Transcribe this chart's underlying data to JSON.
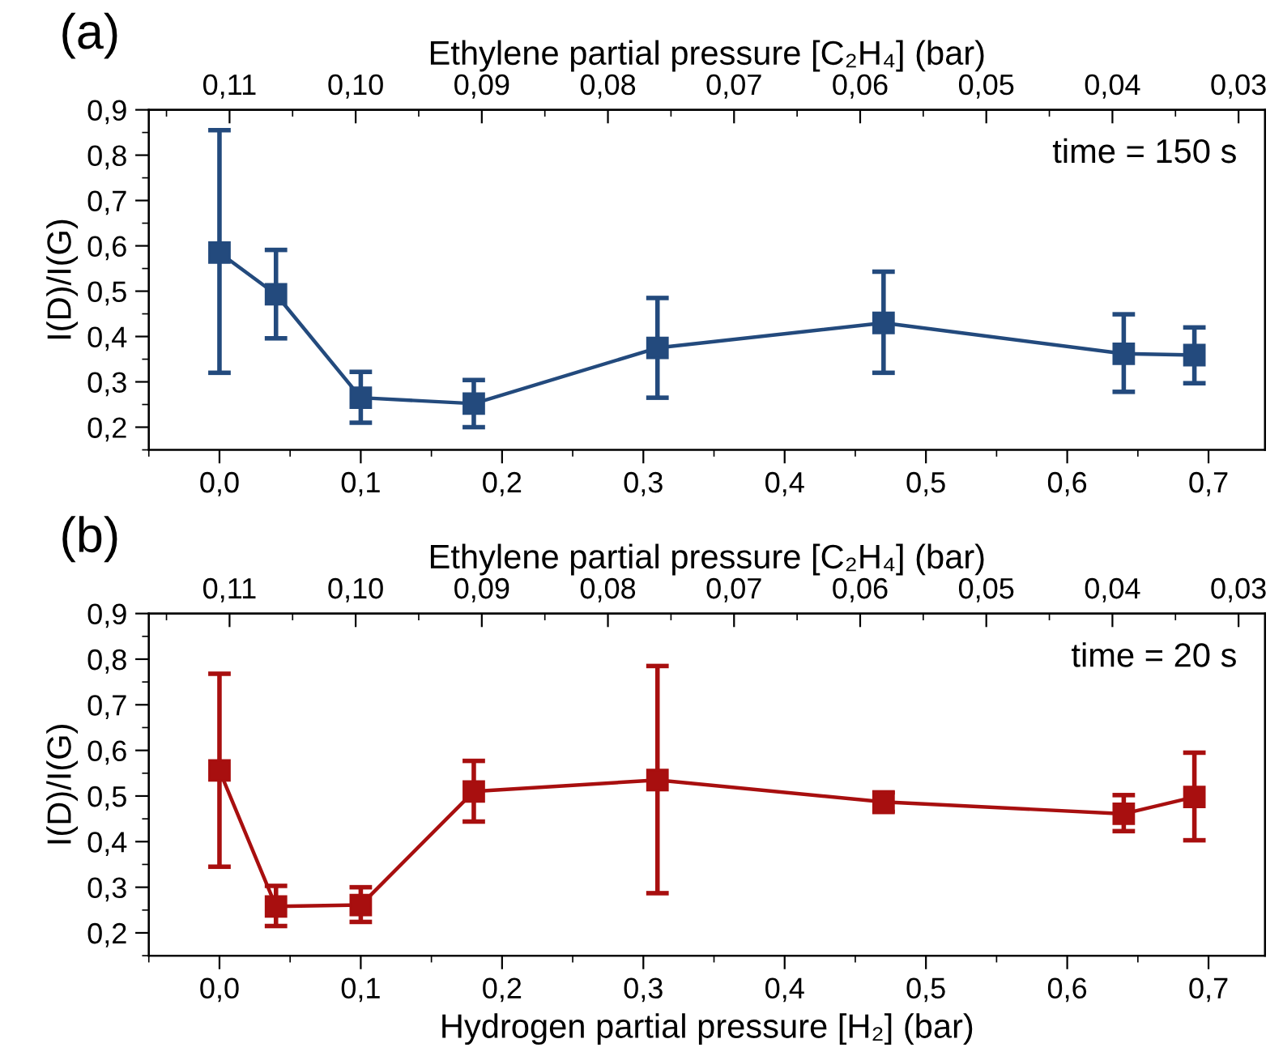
{
  "chart_data": [
    {
      "type": "line",
      "ylabel": "I(D)/I(G)",
      "x2label": "Ethylene partial pressure [C₂H₄] (bar)",
      "annotations": [
        "(a)",
        "time = 150 s"
      ],
      "series": [
        {
          "color": "#234a7d",
          "x": [
            0.0,
            0.04,
            0.1,
            0.18,
            0.31,
            0.47,
            0.64,
            0.69
          ],
          "values": [
            0.585,
            0.493,
            0.265,
            0.252,
            0.375,
            0.43,
            0.362,
            0.359
          ],
          "errors": [
            [
              0.32,
              0.855
            ],
            [
              0.396,
              0.591
            ],
            [
              0.21,
              0.322
            ],
            [
              0.2,
              0.304
            ],
            [
              0.265,
              0.485
            ],
            [
              0.32,
              0.543
            ],
            [
              0.278,
              0.449
            ],
            [
              0.297,
              0.42
            ]
          ]
        }
      ],
      "marker": "square",
      "line_style": "solid",
      "grid": false,
      "legend": false,
      "xlim": [
        -0.05,
        0.74
      ],
      "xticks": [
        {
          "value": 0.0,
          "label": "0,0"
        },
        {
          "value": 0.1,
          "label": "0,1"
        },
        {
          "value": 0.2,
          "label": "0,2"
        },
        {
          "value": 0.3,
          "label": "0,3"
        },
        {
          "value": 0.4,
          "label": "0,4"
        },
        {
          "value": 0.5,
          "label": "0,5"
        },
        {
          "value": 0.6,
          "label": "0,6"
        },
        {
          "value": 0.7,
          "label": "0,7"
        }
      ],
      "x2lim": [
        0.1164,
        0.0279
      ],
      "x2ticks": [
        {
          "value": 0.11,
          "label": "0,11"
        },
        {
          "value": 0.1,
          "label": "0,10"
        },
        {
          "value": 0.09,
          "label": "0,09"
        },
        {
          "value": 0.08,
          "label": "0,08"
        },
        {
          "value": 0.07,
          "label": "0,07"
        },
        {
          "value": 0.06,
          "label": "0,06"
        },
        {
          "value": 0.05,
          "label": "0,05"
        },
        {
          "value": 0.04,
          "label": "0,04"
        },
        {
          "value": 0.03,
          "label": "0,03"
        }
      ],
      "ylim": [
        0.15,
        0.9
      ],
      "yticks": [
        {
          "value": 0.2,
          "label": "0,2"
        },
        {
          "value": 0.3,
          "label": "0,3"
        },
        {
          "value": 0.4,
          "label": "0,4"
        },
        {
          "value": 0.5,
          "label": "0,5"
        },
        {
          "value": 0.6,
          "label": "0,6"
        },
        {
          "value": 0.7,
          "label": "0,7"
        },
        {
          "value": 0.8,
          "label": "0,8"
        },
        {
          "value": 0.9,
          "label": "0,9"
        }
      ]
    },
    {
      "type": "line",
      "ylabel": "I(D)/I(G)",
      "xlabel": "Hydrogen partial pressure [H₂] (bar)",
      "x2label": "Ethylene partial pressure [C₂H₄] (bar)",
      "annotations": [
        "(b)",
        "time = 20 s"
      ],
      "series": [
        {
          "color": "#a80f0f",
          "x": [
            0.0,
            0.04,
            0.1,
            0.18,
            0.31,
            0.47,
            0.64,
            0.69
          ],
          "values": [
            0.556,
            0.258,
            0.261,
            0.51,
            0.535,
            0.487,
            0.461,
            0.498
          ],
          "errors": [
            [
              0.345,
              0.768
            ],
            [
              0.215,
              0.303
            ],
            [
              0.224,
              0.3
            ],
            [
              0.444,
              0.577
            ],
            [
              0.287,
              0.785
            ],
            [
              0.465,
              0.508
            ],
            [
              0.423,
              0.502
            ],
            [
              0.403,
              0.595
            ]
          ]
        }
      ],
      "marker": "square",
      "line_style": "solid",
      "grid": false,
      "legend": false,
      "xlim": [
        -0.05,
        0.74
      ],
      "xticks": [
        {
          "value": 0.0,
          "label": "0,0"
        },
        {
          "value": 0.1,
          "label": "0,1"
        },
        {
          "value": 0.2,
          "label": "0,2"
        },
        {
          "value": 0.3,
          "label": "0,3"
        },
        {
          "value": 0.4,
          "label": "0,4"
        },
        {
          "value": 0.5,
          "label": "0,5"
        },
        {
          "value": 0.6,
          "label": "0,6"
        },
        {
          "value": 0.7,
          "label": "0,7"
        }
      ],
      "x2lim": [
        0.1164,
        0.0279
      ],
      "x2ticks": [
        {
          "value": 0.11,
          "label": "0,11"
        },
        {
          "value": 0.1,
          "label": "0,10"
        },
        {
          "value": 0.09,
          "label": "0,09"
        },
        {
          "value": 0.08,
          "label": "0,08"
        },
        {
          "value": 0.07,
          "label": "0,07"
        },
        {
          "value": 0.06,
          "label": "0,06"
        },
        {
          "value": 0.05,
          "label": "0,05"
        },
        {
          "value": 0.04,
          "label": "0,04"
        },
        {
          "value": 0.03,
          "label": "0,03"
        }
      ],
      "ylim": [
        0.15,
        0.9
      ],
      "yticks": [
        {
          "value": 0.2,
          "label": "0,2"
        },
        {
          "value": 0.3,
          "label": "0,3"
        },
        {
          "value": 0.4,
          "label": "0,4"
        },
        {
          "value": 0.5,
          "label": "0,5"
        },
        {
          "value": 0.6,
          "label": "0,6"
        },
        {
          "value": 0.7,
          "label": "0,7"
        },
        {
          "value": 0.8,
          "label": "0,8"
        },
        {
          "value": 0.9,
          "label": "0,9"
        }
      ]
    }
  ]
}
